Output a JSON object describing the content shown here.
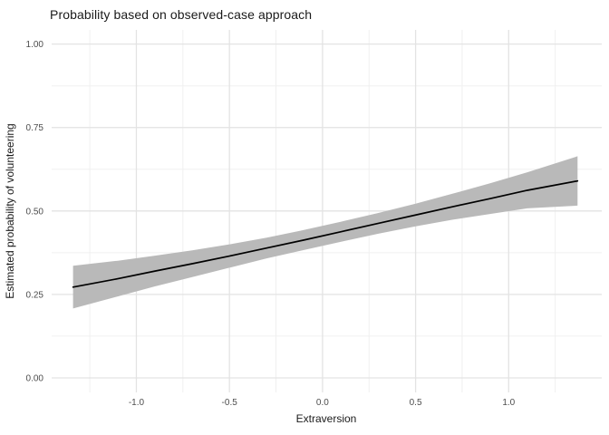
{
  "title": "Probability based on observed-case approach",
  "colors": {
    "background": "#ffffff",
    "grid_major": "#e3e3e3",
    "grid_minor": "#f0f0f0",
    "ribbon": "#b9b9b9",
    "line": "#000000",
    "tick_text": "#4d4d4d",
    "title_text": "#1a1a1a"
  },
  "chart_data": {
    "type": "line",
    "title": "Probability based on observed-case approach",
    "xlabel": "Extraversion",
    "ylabel": "Estimated probability of volunteering",
    "legend": "none",
    "grid": "on",
    "xlim": [
      -1.455,
      1.5
    ],
    "ylim": [
      -0.0435,
      1.0425
    ],
    "x_ticks": [
      -1.0,
      -0.5,
      0.0,
      0.5,
      1.0
    ],
    "x_tick_labels": [
      "-1.0",
      "-0.5",
      "0.0",
      "0.5",
      "1.0"
    ],
    "x_minor_ticks": [
      -1.25,
      -0.75,
      -0.25,
      0.25,
      0.75,
      1.25
    ],
    "y_ticks": [
      0.0,
      0.25,
      0.5,
      0.75,
      1.0
    ],
    "y_tick_labels": [
      "0.00",
      "0.25",
      "0.50",
      "0.75",
      "1.00"
    ],
    "y_minor_ticks": [
      0.125,
      0.375,
      0.625,
      0.875
    ],
    "series": [
      {
        "name": "fitted-probability",
        "x": [
          -1.34,
          -1.1,
          -0.9,
          -0.7,
          -0.5,
          -0.3,
          -0.1,
          0.1,
          0.3,
          0.5,
          0.7,
          0.9,
          1.1,
          1.37
        ],
        "y": [
          0.272,
          0.297,
          0.32,
          0.342,
          0.365,
          0.389,
          0.413,
          0.438,
          0.463,
          0.488,
          0.513,
          0.537,
          0.562,
          0.59
        ]
      }
    ],
    "ribbon": {
      "name": "95%-confidence-band",
      "x": [
        -1.34,
        -1.1,
        -0.9,
        -0.7,
        -0.5,
        -0.3,
        -0.1,
        0.1,
        0.3,
        0.5,
        0.7,
        0.9,
        1.1,
        1.37
      ],
      "upper": [
        0.336,
        0.351,
        0.366,
        0.382,
        0.4,
        0.42,
        0.443,
        0.468,
        0.494,
        0.522,
        0.552,
        0.583,
        0.616,
        0.664
      ],
      "lower": [
        0.208,
        0.244,
        0.274,
        0.302,
        0.33,
        0.358,
        0.383,
        0.408,
        0.432,
        0.454,
        0.474,
        0.491,
        0.508,
        0.516
      ]
    }
  }
}
